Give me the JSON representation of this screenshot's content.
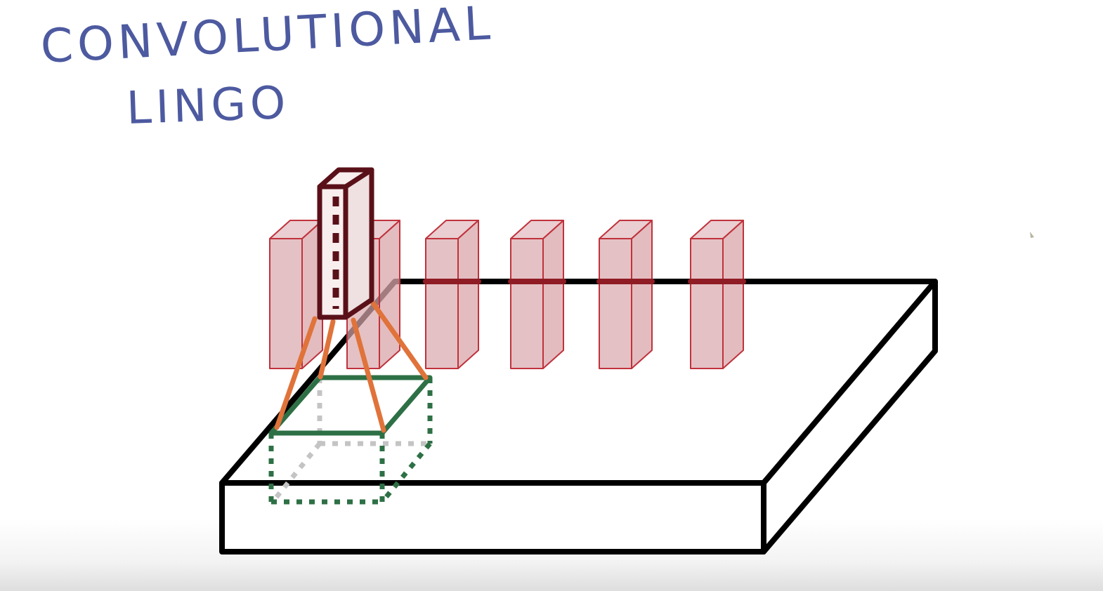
{
  "title": {
    "line1": "CONVOLUTIONAL",
    "line2": "LINGO"
  },
  "colors": {
    "handwriting": "#4d5aa0",
    "slab_outline": "#000000",
    "feature_column_fill": "#d9a6ab",
    "feature_column_stroke": "#c0323c",
    "output_column_stroke": "#5a1018",
    "output_column_fill": "#f8eeee",
    "patch_solid": "#2e7045",
    "patch_dotted": "#2e7045",
    "patch_hidden": "#c4c4c4",
    "projection_lines": "#e0733a",
    "cursor": "#b5b5a0"
  },
  "diagram": {
    "slab": "input-volume",
    "feature_column_count": 6,
    "output_column": "selected-output-column",
    "patch": "input-patch",
    "projection_line_count": 4
  }
}
